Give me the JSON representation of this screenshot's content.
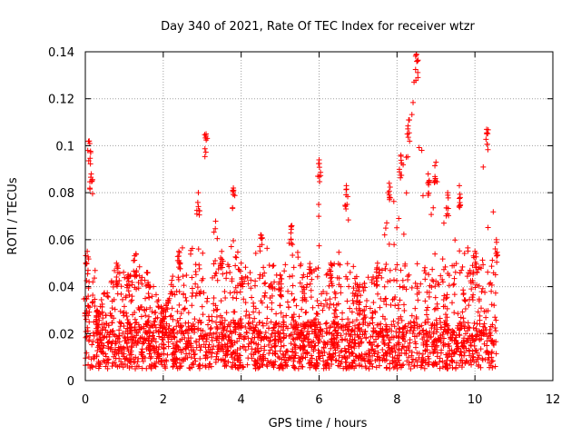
{
  "chart_data": {
    "type": "scatter",
    "title": "Day 340 of 2021, Rate Of TEC Index for receiver wtzr",
    "xlabel": "GPS time / hours",
    "ylabel": "ROTI / TECUs",
    "xlim": [
      0,
      12
    ],
    "ylim": [
      0,
      0.14
    ],
    "grid": true,
    "marker": "+",
    "color": "#ff0000",
    "x_ticks": [
      "0",
      "2",
      "4",
      "6",
      "8",
      "10",
      "12"
    ],
    "y_ticks": [
      "0",
      "0.02",
      "0.04",
      "0.06",
      "0.08",
      "0.1",
      "0.12",
      "0.14"
    ],
    "series": [
      {
        "name": "wtzr",
        "x_range": [
          0.0,
          10.55
        ],
        "baseline_band": [
          0.005,
          0.025
        ],
        "envelope": [
          {
            "x": 0.0,
            "y": 0.035
          },
          {
            "x": 0.05,
            "y": 0.055
          },
          {
            "x": 0.1,
            "y": 0.102
          },
          {
            "x": 0.15,
            "y": 0.088
          },
          {
            "x": 0.3,
            "y": 0.03
          },
          {
            "x": 0.8,
            "y": 0.05
          },
          {
            "x": 1.1,
            "y": 0.045
          },
          {
            "x": 1.3,
            "y": 0.054
          },
          {
            "x": 1.6,
            "y": 0.046
          },
          {
            "x": 2.0,
            "y": 0.03
          },
          {
            "x": 2.4,
            "y": 0.055
          },
          {
            "x": 2.9,
            "y": 0.08
          },
          {
            "x": 3.1,
            "y": 0.105
          },
          {
            "x": 3.5,
            "y": 0.055
          },
          {
            "x": 3.8,
            "y": 0.082
          },
          {
            "x": 4.0,
            "y": 0.05
          },
          {
            "x": 4.5,
            "y": 0.062
          },
          {
            "x": 5.0,
            "y": 0.045
          },
          {
            "x": 5.3,
            "y": 0.066
          },
          {
            "x": 5.6,
            "y": 0.045
          },
          {
            "x": 6.0,
            "y": 0.094
          },
          {
            "x": 6.3,
            "y": 0.05
          },
          {
            "x": 6.7,
            "y": 0.083
          },
          {
            "x": 7.0,
            "y": 0.04
          },
          {
            "x": 7.5,
            "y": 0.05
          },
          {
            "x": 7.8,
            "y": 0.084
          },
          {
            "x": 8.1,
            "y": 0.096
          },
          {
            "x": 8.3,
            "y": 0.111
          },
          {
            "x": 8.5,
            "y": 0.139
          },
          {
            "x": 8.8,
            "y": 0.088
          },
          {
            "x": 9.0,
            "y": 0.093
          },
          {
            "x": 9.3,
            "y": 0.08
          },
          {
            "x": 9.6,
            "y": 0.083
          },
          {
            "x": 10.0,
            "y": 0.055
          },
          {
            "x": 10.3,
            "y": 0.107
          },
          {
            "x": 10.55,
            "y": 0.06
          }
        ]
      }
    ]
  }
}
